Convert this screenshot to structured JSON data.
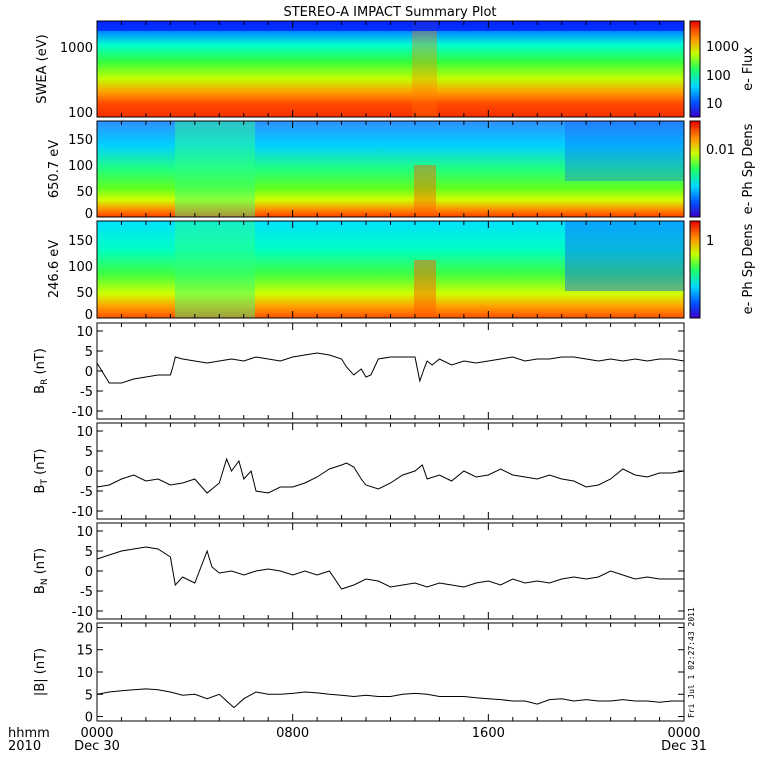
{
  "chart_data": {
    "type": "line",
    "title": "STEREO-A IMPACT Summary Plot",
    "time_axis": {
      "corner_labels": [
        "hhmm",
        "2010"
      ],
      "ticks": [
        {
          "label": "0000",
          "sub": "Dec 30",
          "hour": 0
        },
        {
          "label": "0800",
          "sub": "",
          "hour": 8
        },
        {
          "label": "1600",
          "sub": "",
          "hour": 16
        },
        {
          "label": "0000",
          "sub": "Dec 31",
          "hour": 24
        }
      ],
      "range_hours": [
        0,
        24
      ]
    },
    "spectrograms": [
      {
        "name": "swea",
        "ylabel": "SWEA (eV)",
        "yscale": "log",
        "ylim": [
          90,
          2000
        ],
        "yticks": [
          "100",
          "1000"
        ],
        "colorbar_label": "e- Flux",
        "colorbar_ticks": [
          "10",
          "100",
          "1000"
        ]
      },
      {
        "name": "pad650",
        "ylabel": "650.7 eV",
        "yscale": "linear",
        "ylim": [
          -10,
          180
        ],
        "yticks": [
          "0",
          "50",
          "100",
          "150"
        ],
        "colorbar_label": "e- Ph Sp Dens",
        "colorbar_ticks": [
          "0.01"
        ]
      },
      {
        "name": "pad246",
        "ylabel": "246.6 eV",
        "yscale": "linear",
        "ylim": [
          -10,
          180
        ],
        "yticks": [
          "0",
          "50",
          "100",
          "150"
        ],
        "colorbar_label": "e- Ph Sp Dens",
        "colorbar_ticks": [
          "1"
        ]
      }
    ],
    "series": [
      {
        "name": "BR",
        "ylabel": "B_R (nT)",
        "ylim": [
          -12,
          12
        ],
        "yticks": [
          "-10",
          "-5",
          "0",
          "5",
          "10"
        ],
        "x": [
          0,
          0.5,
          1,
          1.5,
          2,
          2.5,
          3,
          3.1,
          3.2,
          3.5,
          4,
          4.5,
          5,
          5.5,
          6,
          6.5,
          7,
          7.5,
          8,
          8.5,
          9,
          9.5,
          10,
          10.2,
          10.5,
          10.8,
          11,
          11.2,
          11.5,
          12,
          12.5,
          13,
          13.2,
          13.4,
          13.5,
          13.7,
          14,
          14.5,
          15,
          15.5,
          16,
          16.5,
          17,
          17.5,
          18,
          18.5,
          19,
          19.5,
          20,
          20.5,
          21,
          21.5,
          22,
          22.5,
          23,
          23.5,
          24
        ],
        "y": [
          2,
          -3,
          -3,
          -2,
          -1.5,
          -1,
          -1,
          1,
          3.5,
          3,
          2.5,
          2,
          2.5,
          3,
          2.5,
          3.5,
          3,
          2.5,
          3.5,
          4,
          4.5,
          4,
          3,
          1,
          -1,
          0.5,
          -1.5,
          -1,
          3,
          3.5,
          3.5,
          3.5,
          -2.5,
          1,
          2.5,
          1.5,
          3,
          1.5,
          2.5,
          2,
          2.5,
          3,
          3.5,
          2.5,
          3,
          3,
          3.5,
          3.5,
          3,
          2.5,
          3,
          2.5,
          3,
          2.5,
          3,
          3,
          2.5
        ]
      },
      {
        "name": "BT",
        "ylabel": "B_T (nT)",
        "ylim": [
          -12,
          12
        ],
        "yticks": [
          "-10",
          "-5",
          "0",
          "5",
          "10"
        ],
        "x": [
          0,
          0.5,
          1,
          1.5,
          2,
          2.5,
          3,
          3.5,
          4,
          4.5,
          5,
          5.3,
          5.5,
          5.8,
          6,
          6.3,
          6.5,
          7,
          7.5,
          8,
          8.5,
          9,
          9.5,
          10,
          10.2,
          10.5,
          10.8,
          11,
          11.5,
          12,
          12.5,
          13,
          13.3,
          13.5,
          14,
          14.5,
          15,
          15.5,
          16,
          16.5,
          17,
          17.5,
          18,
          18.5,
          19,
          19.5,
          20,
          20.5,
          21,
          21.5,
          22,
          22.5,
          23,
          23.5,
          24
        ],
        "y": [
          -4,
          -3.5,
          -2,
          -1,
          -2.5,
          -2,
          -3.5,
          -3,
          -2,
          -5.5,
          -3,
          3,
          0,
          2.5,
          -2,
          0,
          -5,
          -5.5,
          -4,
          -4,
          -3,
          -1.5,
          0.5,
          1.5,
          2,
          1,
          -2,
          -3.5,
          -4.5,
          -3,
          -1,
          0,
          1.5,
          -2,
          -1,
          -2.5,
          0,
          -1.5,
          -1,
          0.5,
          -1,
          -1.5,
          -2,
          -1,
          -2,
          -2.5,
          -4,
          -3.5,
          -2,
          0.5,
          -1,
          -1.5,
          -0.5,
          -0.5,
          0
        ]
      },
      {
        "name": "BN",
        "ylabel": "B_N (nT)",
        "ylim": [
          -12,
          12
        ],
        "yticks": [
          "-10",
          "-5",
          "0",
          "5",
          "10"
        ],
        "x": [
          0,
          0.5,
          1,
          1.5,
          2,
          2.5,
          3,
          3.2,
          3.5,
          4,
          4.5,
          4.7,
          5,
          5.5,
          6,
          6.5,
          7,
          7.5,
          8,
          8.5,
          9,
          9.5,
          10,
          10.5,
          11,
          11.5,
          12,
          12.5,
          13,
          13.5,
          14,
          14.5,
          15,
          15.5,
          16,
          16.5,
          17,
          17.5,
          18,
          18.5,
          19,
          19.5,
          20,
          20.5,
          21,
          21.5,
          22,
          22.5,
          23,
          23.5,
          24
        ],
        "y": [
          3,
          4,
          5,
          5.5,
          6,
          5.5,
          3.5,
          -3.5,
          -1.5,
          -3,
          5,
          1,
          -0.5,
          0,
          -1,
          0,
          0.5,
          0,
          -1,
          0,
          -1,
          0,
          -4.5,
          -3.5,
          -2,
          -2.5,
          -4,
          -3.5,
          -3,
          -4,
          -3,
          -3.5,
          -4,
          -3,
          -2.5,
          -3.5,
          -2,
          -3,
          -2.5,
          -3,
          -2,
          -1.5,
          -2,
          -1.5,
          0,
          -1,
          -2,
          -1.5,
          -2,
          -2,
          -2
        ]
      },
      {
        "name": "B",
        "ylabel": "|B| (nT)",
        "ylim": [
          -1,
          21
        ],
        "yticks": [
          "0",
          "5",
          "10",
          "15",
          "20"
        ],
        "x": [
          0,
          0.5,
          1,
          1.5,
          2,
          2.5,
          3,
          3.5,
          4,
          4.5,
          5,
          5.3,
          5.6,
          6,
          6.5,
          7,
          7.5,
          8,
          8.5,
          9,
          9.5,
          10,
          10.5,
          11,
          11.5,
          12,
          12.5,
          13,
          13.5,
          14,
          14.5,
          15,
          15.5,
          16,
          16.5,
          17,
          17.5,
          18,
          18.5,
          19,
          19.5,
          20,
          20.5,
          21,
          21.5,
          22,
          22.5,
          23,
          23.5,
          24
        ],
        "y": [
          5,
          5.5,
          5.8,
          6,
          6.2,
          6,
          5.5,
          4.8,
          5,
          4,
          5,
          3.5,
          2,
          4,
          5.5,
          5,
          5,
          5.2,
          5.5,
          5.3,
          5,
          4.8,
          4.5,
          4.8,
          4.5,
          4.5,
          5,
          5.2,
          5,
          4.5,
          4.5,
          4.5,
          4.2,
          4,
          3.8,
          3.5,
          3.5,
          2.8,
          3.8,
          4,
          3.5,
          3.8,
          3.5,
          3.5,
          3.8,
          3.5,
          3.5,
          3.2,
          3.5,
          3.5
        ]
      }
    ],
    "side_stamp": "Fri Jul 1 02:27:43 2011"
  },
  "colors": {
    "axis": "#000000",
    "line": "#000000",
    "background": "#ffffff"
  }
}
